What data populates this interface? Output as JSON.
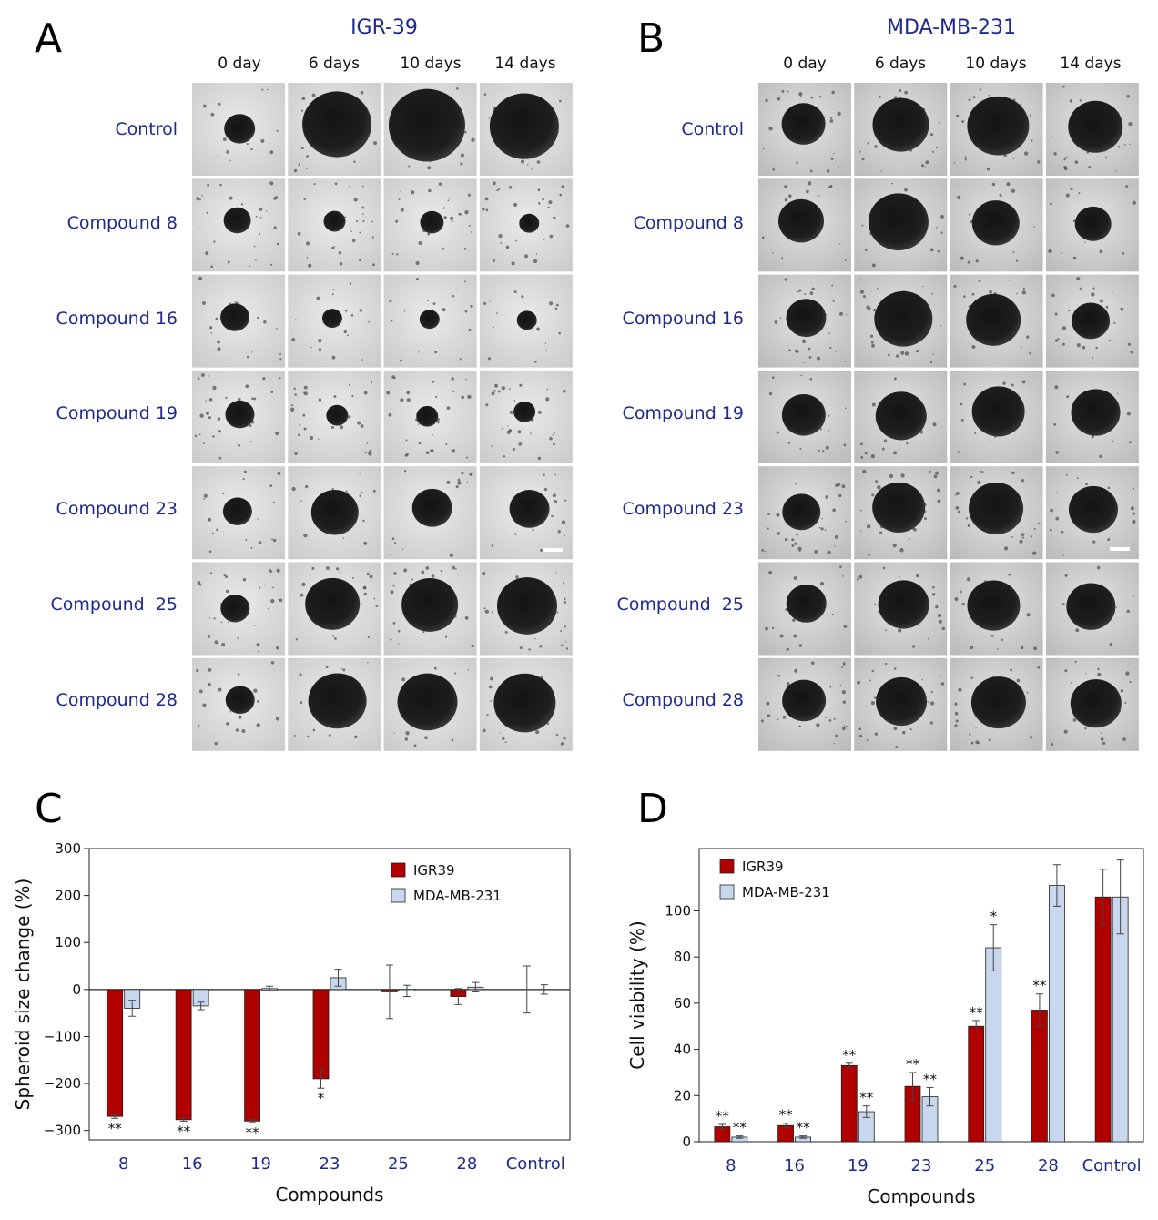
{
  "figure": {
    "panel_a": {
      "letter": "A",
      "title": "IGR-39",
      "columns": [
        "0 day",
        "6 days",
        "10 days",
        "14 days"
      ],
      "rows": [
        "Control",
        "Compound 8",
        "Compound 16",
        "Compound 19",
        "Compound 23",
        "Compound  25",
        "Compound 28"
      ]
    },
    "panel_b": {
      "letter": "B",
      "title": "MDA-MB-231",
      "columns": [
        "0 day",
        "6 days",
        "10 days",
        "14 days"
      ],
      "rows": [
        "Control",
        "Compound 8",
        "Compound 16",
        "Compound 19",
        "Compound 23",
        "Compound  25",
        "Compound 28"
      ]
    },
    "panel_c_letter": "C",
    "panel_d_letter": "D"
  },
  "colors": {
    "igr39": "#b00000",
    "mda": "#c6d7ee",
    "label_blue": "#1f2a8f"
  },
  "chart_data": [
    {
      "panel": "C",
      "type": "bar",
      "title": "",
      "xlabel": "Compounds",
      "ylabel": "Spheroid size change (%)",
      "ylim": [
        -320,
        300
      ],
      "yticks": [
        -300,
        -200,
        -100,
        0,
        100,
        200,
        300
      ],
      "categories": [
        "8",
        "16",
        "19",
        "23",
        "25",
        "28",
        "Control"
      ],
      "legend": "top-right",
      "series": [
        {
          "name": "IGR39",
          "values": [
            -270,
            -277,
            -280,
            -190,
            -5,
            -15,
            0
          ],
          "errors": [
            4,
            3,
            3,
            20,
            57,
            17,
            50
          ]
        },
        {
          "name": "MDA-MB-231",
          "values": [
            -40,
            -35,
            2,
            25,
            -3,
            5,
            0
          ],
          "errors": [
            17,
            8,
            5,
            18,
            12,
            10,
            10
          ]
        }
      ],
      "significance": {
        "IGR39": [
          "**",
          "**",
          "**",
          "*",
          "",
          "",
          ""
        ],
        "MDA-MB-231": [
          "",
          "",
          "",
          "",
          "",
          "",
          ""
        ]
      }
    },
    {
      "panel": "D",
      "type": "bar",
      "title": "",
      "xlabel": "Compounds",
      "ylabel": "Cell viability (%)",
      "ylim": [
        0,
        127
      ],
      "yticks": [
        0,
        20,
        40,
        60,
        80,
        100
      ],
      "categories": [
        "8",
        "16",
        "19",
        "23",
        "25",
        "28",
        "Control"
      ],
      "legend": "top-left",
      "series": [
        {
          "name": "IGR39",
          "values": [
            6.5,
            7,
            33,
            24,
            50,
            57,
            106
          ],
          "errors": [
            1,
            1,
            1,
            6,
            2.5,
            7,
            12
          ]
        },
        {
          "name": "MDA-MB-231",
          "values": [
            2,
            2,
            13,
            19.5,
            84,
            111,
            106
          ],
          "errors": [
            0.5,
            0.5,
            2.5,
            4,
            10,
            9,
            16
          ]
        }
      ],
      "significance": {
        "IGR39": [
          "**",
          "**",
          "**",
          "**",
          "**",
          "**",
          ""
        ],
        "MDA-MB-231": [
          "**",
          "**",
          "**",
          "**",
          "*",
          "",
          ""
        ]
      }
    }
  ]
}
